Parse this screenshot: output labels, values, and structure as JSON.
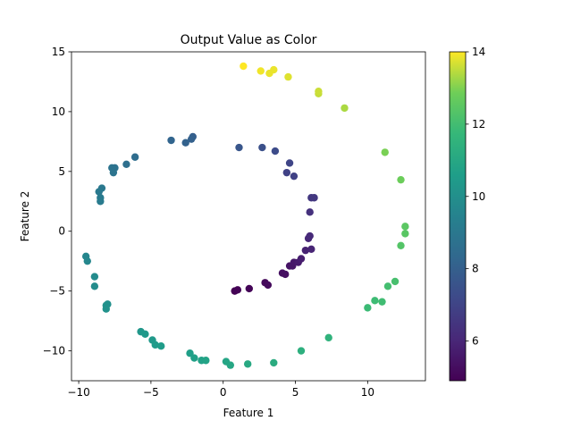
{
  "chart_data": {
    "type": "scatter",
    "title": "Output Value as Color",
    "xlabel": "Feature 1",
    "ylabel": "Feature 2",
    "xlim": [
      -10.5,
      14
    ],
    "ylim": [
      -12.5,
      15
    ],
    "xticks": [
      -10,
      -5,
      0,
      5,
      10
    ],
    "yticks": [
      -10,
      -5,
      0,
      5,
      10,
      15
    ],
    "colorbar": {
      "label": "",
      "range": [
        4.9,
        14
      ],
      "ticks": [
        6,
        8,
        10,
        12,
        14
      ],
      "colormap": "viridis"
    },
    "grid": false,
    "points": [
      {
        "x": 0.8,
        "y": -5.0,
        "c": 4.9
      },
      {
        "x": 1.0,
        "y": -4.9,
        "c": 4.95
      },
      {
        "x": 1.8,
        "y": -4.8,
        "c": 5.0
      },
      {
        "x": 2.9,
        "y": -4.3,
        "c": 5.1
      },
      {
        "x": 3.1,
        "y": -4.5,
        "c": 5.15
      },
      {
        "x": 4.1,
        "y": -3.5,
        "c": 5.3
      },
      {
        "x": 4.3,
        "y": -3.6,
        "c": 5.35
      },
      {
        "x": 4.6,
        "y": -2.9,
        "c": 5.45
      },
      {
        "x": 4.8,
        "y": -2.9,
        "c": 5.5
      },
      {
        "x": 4.9,
        "y": -2.6,
        "c": 5.55
      },
      {
        "x": 5.2,
        "y": -2.6,
        "c": 5.65
      },
      {
        "x": 5.4,
        "y": -2.3,
        "c": 5.75
      },
      {
        "x": 5.7,
        "y": -1.6,
        "c": 5.85
      },
      {
        "x": 6.1,
        "y": -1.5,
        "c": 5.95
      },
      {
        "x": 5.9,
        "y": -0.6,
        "c": 6.05
      },
      {
        "x": 6.0,
        "y": -0.4,
        "c": 6.1
      },
      {
        "x": 6.0,
        "y": 1.6,
        "c": 6.35
      },
      {
        "x": 6.1,
        "y": 2.8,
        "c": 6.55
      },
      {
        "x": 6.3,
        "y": 2.8,
        "c": 6.6
      },
      {
        "x": 4.9,
        "y": 4.6,
        "c": 6.9
      },
      {
        "x": 4.4,
        "y": 4.9,
        "c": 6.95
      },
      {
        "x": 4.6,
        "y": 5.7,
        "c": 7.05
      },
      {
        "x": 3.6,
        "y": 6.7,
        "c": 7.3
      },
      {
        "x": 2.7,
        "y": 7.0,
        "c": 7.45
      },
      {
        "x": 1.1,
        "y": 7.0,
        "c": 7.65
      },
      {
        "x": -2.1,
        "y": 7.9,
        "c": 8.0
      },
      {
        "x": -2.2,
        "y": 7.7,
        "c": 8.05
      },
      {
        "x": -2.6,
        "y": 7.4,
        "c": 8.1
      },
      {
        "x": -3.6,
        "y": 7.6,
        "c": 8.2
      },
      {
        "x": -6.1,
        "y": 6.2,
        "c": 8.55
      },
      {
        "x": -6.7,
        "y": 5.6,
        "c": 8.65
      },
      {
        "x": -7.5,
        "y": 5.3,
        "c": 8.75
      },
      {
        "x": -7.7,
        "y": 5.3,
        "c": 8.8
      },
      {
        "x": -7.6,
        "y": 4.9,
        "c": 8.85
      },
      {
        "x": -8.4,
        "y": 3.6,
        "c": 9.0
      },
      {
        "x": -8.6,
        "y": 3.3,
        "c": 9.05
      },
      {
        "x": -8.5,
        "y": 2.8,
        "c": 9.1
      },
      {
        "x": -8.5,
        "y": 2.5,
        "c": 9.15
      },
      {
        "x": -9.5,
        "y": -2.1,
        "c": 9.6
      },
      {
        "x": -9.4,
        "y": -2.5,
        "c": 9.65
      },
      {
        "x": -8.9,
        "y": -3.8,
        "c": 9.8
      },
      {
        "x": -8.9,
        "y": -4.6,
        "c": 9.85
      },
      {
        "x": -8.0,
        "y": -6.1,
        "c": 10.0
      },
      {
        "x": -8.1,
        "y": -6.2,
        "c": 10.05
      },
      {
        "x": -8.1,
        "y": -6.5,
        "c": 10.1
      },
      {
        "x": -5.7,
        "y": -8.4,
        "c": 10.3
      },
      {
        "x": -5.4,
        "y": -8.6,
        "c": 10.35
      },
      {
        "x": -4.9,
        "y": -9.1,
        "c": 10.4
      },
      {
        "x": -4.7,
        "y": -9.5,
        "c": 10.45
      },
      {
        "x": -4.3,
        "y": -9.6,
        "c": 10.5
      },
      {
        "x": -2.3,
        "y": -10.2,
        "c": 10.65
      },
      {
        "x": -2.0,
        "y": -10.6,
        "c": 10.7
      },
      {
        "x": -1.5,
        "y": -10.8,
        "c": 10.75
      },
      {
        "x": -1.2,
        "y": -10.8,
        "c": 10.8
      },
      {
        "x": 0.2,
        "y": -10.9,
        "c": 10.9
      },
      {
        "x": 0.5,
        "y": -11.2,
        "c": 10.95
      },
      {
        "x": 1.7,
        "y": -11.1,
        "c": 11.05
      },
      {
        "x": 3.5,
        "y": -11.0,
        "c": 11.2
      },
      {
        "x": 5.4,
        "y": -10.0,
        "c": 11.35
      },
      {
        "x": 7.3,
        "y": -8.9,
        "c": 11.5
      },
      {
        "x": 10.0,
        "y": -6.4,
        "c": 11.85
      },
      {
        "x": 10.5,
        "y": -5.8,
        "c": 11.9
      },
      {
        "x": 11.0,
        "y": -5.9,
        "c": 11.95
      },
      {
        "x": 11.4,
        "y": -4.6,
        "c": 12.05
      },
      {
        "x": 11.9,
        "y": -4.2,
        "c": 12.1
      },
      {
        "x": 12.3,
        "y": -1.2,
        "c": 12.35
      },
      {
        "x": 12.6,
        "y": -0.2,
        "c": 12.45
      },
      {
        "x": 12.6,
        "y": 0.4,
        "c": 12.5
      },
      {
        "x": 12.3,
        "y": 4.3,
        "c": 12.8
      },
      {
        "x": 11.2,
        "y": 6.6,
        "c": 12.95
      },
      {
        "x": 8.4,
        "y": 10.3,
        "c": 13.35
      },
      {
        "x": 6.6,
        "y": 11.5,
        "c": 13.55
      },
      {
        "x": 6.6,
        "y": 11.7,
        "c": 13.6
      },
      {
        "x": 4.5,
        "y": 12.9,
        "c": 13.75
      },
      {
        "x": 3.5,
        "y": 13.5,
        "c": 13.85
      },
      {
        "x": 3.2,
        "y": 13.2,
        "c": 13.85
      },
      {
        "x": 2.6,
        "y": 13.4,
        "c": 13.9
      },
      {
        "x": 1.4,
        "y": 13.8,
        "c": 14.0
      }
    ]
  }
}
